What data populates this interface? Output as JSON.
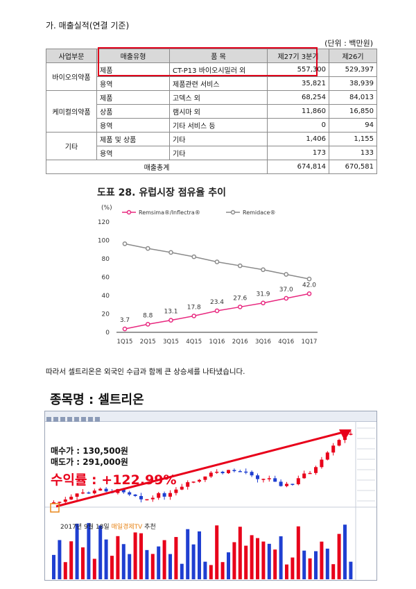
{
  "section": {
    "title": "가. 매출실적(연결 기준)",
    "unit": "(단위 : 백만원)"
  },
  "sales_table": {
    "headers": [
      "사업부문",
      "매출유형",
      "품 목",
      "제27기 3분기",
      "제26기"
    ],
    "groups": [
      {
        "segment": "바이오의약품",
        "rows": [
          {
            "type": "제품",
            "item": "CT-P13 바이오시밀러 외",
            "cur": "557,300",
            "prev": "529,397"
          },
          {
            "type": "용역",
            "item": "제품관련 서비스",
            "cur": "35,821",
            "prev": "38,939"
          }
        ]
      },
      {
        "segment": "케미컬의약품",
        "rows": [
          {
            "type": "제품",
            "item": "고덱스 외",
            "cur": "68,254",
            "prev": "84,013"
          },
          {
            "type": "상품",
            "item": "램시마 외",
            "cur": "11,860",
            "prev": "16,850"
          },
          {
            "type": "용역",
            "item": "기타 서비스 등",
            "cur": "0",
            "prev": "94"
          }
        ]
      },
      {
        "segment": "기타",
        "rows": [
          {
            "type": "제품 및 상품",
            "item": "기타",
            "cur": "1,406",
            "prev": "1,155"
          },
          {
            "type": "용역",
            "item": "기타",
            "cur": "173",
            "prev": "133"
          }
        ]
      }
    ],
    "total": {
      "label": "매출총계",
      "cur": "674,814",
      "prev": "670,581"
    }
  },
  "chart_data": {
    "type": "line",
    "title_prefix": "도표 28.",
    "title": "유럽시장 점유율 추이",
    "ylabel": "(%)",
    "ylim": [
      0,
      120
    ],
    "yticks": [
      "0",
      "20",
      "40",
      "60",
      "80",
      "100",
      "120"
    ],
    "categories": [
      "1Q15",
      "2Q15",
      "3Q15",
      "4Q15",
      "1Q16",
      "2Q16",
      "3Q16",
      "4Q16",
      "1Q17"
    ],
    "legend_position": "top",
    "series": [
      {
        "name": "Remsima®/Inflectra®",
        "color": "#e8287f",
        "values": [
          3.7,
          8.8,
          13.1,
          17.8,
          23.4,
          27.6,
          31.9,
          37.0,
          42.0
        ],
        "labels": [
          "3.7",
          "8.8",
          "13.1",
          "17.8",
          "23.4",
          "27.6",
          "31.9",
          "37.0",
          "42.0"
        ]
      },
      {
        "name": "Remidace®",
        "color": "#8a8a8a",
        "values": [
          96.3,
          91.2,
          86.9,
          82.2,
          76.6,
          72.4,
          68.1,
          63.0,
          58.0
        ]
      }
    ]
  },
  "paragraph": "따라서 셀트리온은 외국인 수급과 함께 큰 상승세를 나타냈습니다.",
  "stock": {
    "title": "종목명 : 셀트리온",
    "buy": "매수가 : 130,500원",
    "sell": "매도가 : 291,000원",
    "return": "수익률 : +122.99%",
    "rec_prefix": "2017년 9월 18일 ",
    "rec_source": "매일경제TV",
    "rec_suffix": " 추천",
    "up_color": "#e8001a",
    "down_color": "#1f3fd1"
  }
}
